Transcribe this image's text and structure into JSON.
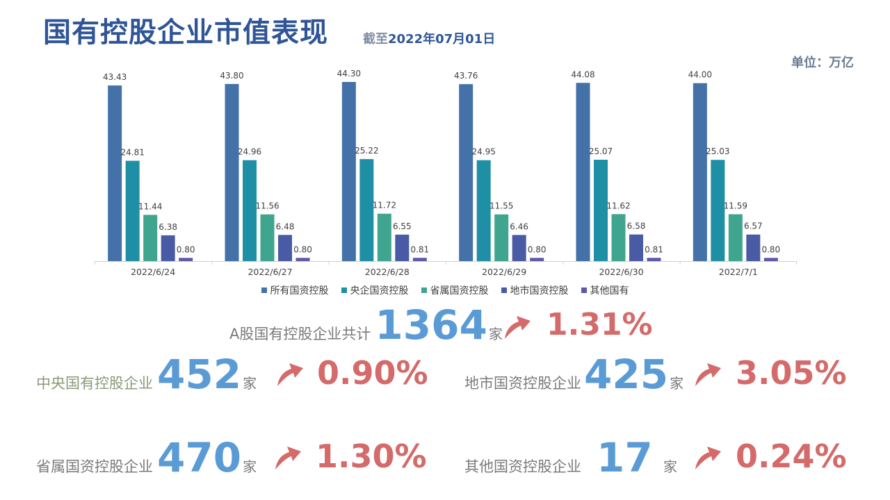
{
  "header": {
    "title": "国有控股企业市值表现",
    "asof_prefix": "截至",
    "asof_date": "2022年07月01日",
    "unit": "单位：万亿"
  },
  "chart_data": {
    "type": "bar",
    "categories": [
      "2022/6/24",
      "2022/6/27",
      "2022/6/28",
      "2022/6/29",
      "2022/6/30",
      "2022/7/1"
    ],
    "series": [
      {
        "name": "所有国资控股",
        "color": "#4472a8",
        "values": [
          43.43,
          43.8,
          44.3,
          43.76,
          44.08,
          44.0
        ]
      },
      {
        "name": "央企国资控股",
        "color": "#1f8fa5",
        "values": [
          24.81,
          24.96,
          25.22,
          24.95,
          25.07,
          25.03
        ]
      },
      {
        "name": "省属国资控股",
        "color": "#3fa58f",
        "values": [
          11.44,
          11.56,
          11.72,
          11.55,
          11.62,
          11.59
        ]
      },
      {
        "name": "地市国资控股",
        "color": "#4a5ba6",
        "values": [
          6.38,
          6.48,
          6.55,
          6.46,
          6.58,
          6.57
        ]
      },
      {
        "name": "其他国有",
        "color": "#5e58a8",
        "values": [
          0.8,
          0.8,
          0.81,
          0.8,
          0.81,
          0.8
        ]
      }
    ],
    "ylim": [
      0,
      44.3
    ],
    "grid": false,
    "legend": "bottom"
  },
  "stats": {
    "total": {
      "label": "A股国有控股企业共计",
      "value": "1364",
      "unit": "家",
      "pct": "1.31%"
    },
    "central": {
      "label": "中央国有控股企业",
      "value": "452",
      "unit": "家",
      "pct": "0.90%"
    },
    "city": {
      "label": "地市国资控股企业",
      "value": "425",
      "unit": "家",
      "pct": "3.05%"
    },
    "provincial": {
      "label": "省属国资控股企业",
      "value": "470",
      "unit": "家",
      "pct": "1.30%"
    },
    "other": {
      "label": "其他国资控股企业",
      "value": "17",
      "unit": "家",
      "pct": "0.24%"
    }
  },
  "colors": {
    "accent": "#5b9bd5",
    "up": "#d46a6a",
    "title": "#2f5597"
  }
}
